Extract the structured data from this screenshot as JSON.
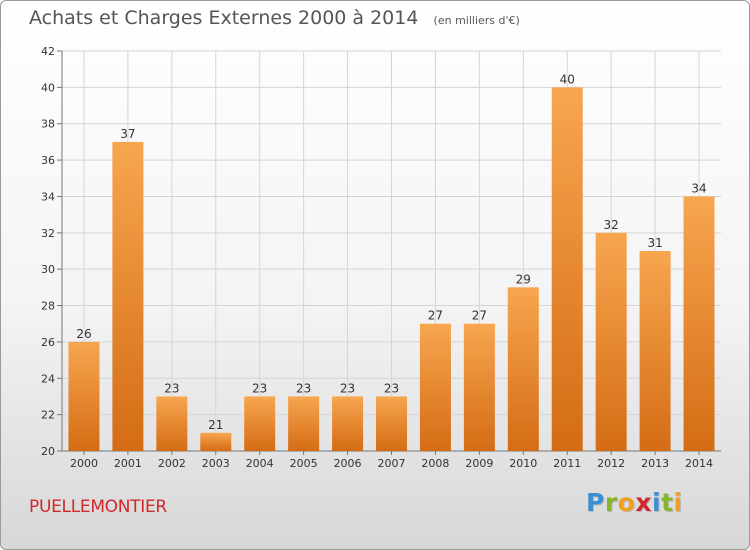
{
  "header": {
    "title": "Achats et Charges Externes 2000 à 2014",
    "unit": "(en milliers d'€)"
  },
  "footer": {
    "commune": "PUELLEMONTIER",
    "brand_letters": [
      "P",
      "r",
      "o",
      "x",
      "i",
      "t",
      "i"
    ],
    "brand_colors": [
      "#3d8fd0",
      "#86b72a",
      "#f0a020",
      "#d1282c",
      "#3d8fd0",
      "#86b72a",
      "#f0a020"
    ]
  },
  "colors": {
    "bar_light": "#f7a64f",
    "bar_dark": "#d46c15",
    "grid": "#d5d5d5",
    "axis": "#777777",
    "text": "#333333"
  },
  "chart_data": {
    "type": "bar",
    "title": "Achats et Charges Externes 2000 à 2014",
    "subtitle": "(en milliers d'€)",
    "xlabel": "",
    "ylabel": "",
    "categories": [
      "2000",
      "2001",
      "2002",
      "2003",
      "2004",
      "2005",
      "2006",
      "2007",
      "2008",
      "2009",
      "2010",
      "2011",
      "2012",
      "2013",
      "2014"
    ],
    "values": [
      26,
      37,
      23,
      21,
      23,
      23,
      23,
      23,
      27,
      27,
      29,
      40,
      32,
      31,
      34
    ],
    "ylim": [
      20,
      42
    ],
    "yticks": [
      20,
      22,
      24,
      26,
      28,
      30,
      32,
      34,
      36,
      38,
      40,
      42
    ],
    "grid": true,
    "legend": "none"
  }
}
